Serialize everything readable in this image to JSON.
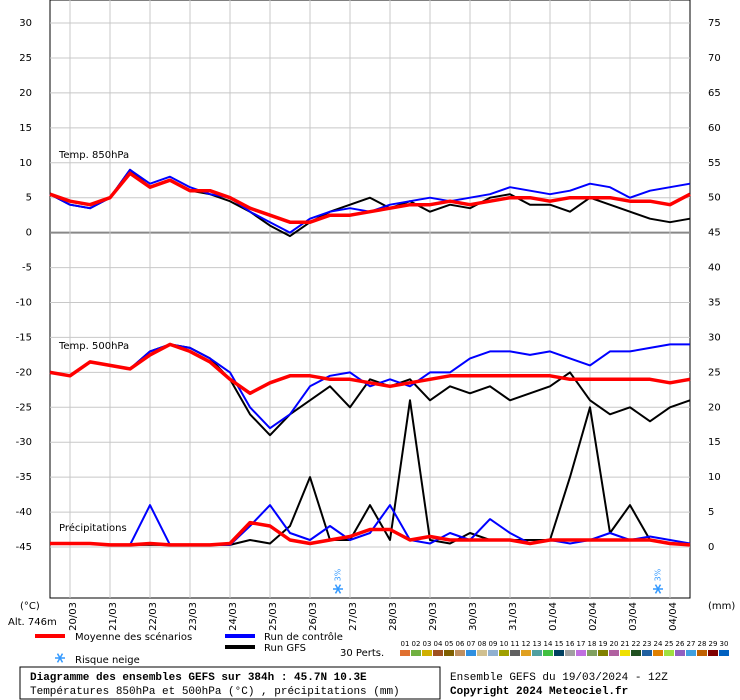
{
  "chart_data": {
    "type": "line",
    "annotations": [
      "Temp. 850hPa",
      "Temp. 500hPa",
      "Précipitations"
    ],
    "y_unit": "(°C)",
    "y2_unit": "(mm)",
    "altitude": "Alt. 746m",
    "categories": [
      "20/03",
      "21/03",
      "22/03",
      "23/03",
      "24/03",
      "25/03",
      "26/03",
      "27/03",
      "28/03",
      "29/03",
      "30/03",
      "31/03",
      "01/04",
      "02/04",
      "03/04",
      "04/04"
    ],
    "ylim": [
      -52.3,
      33.3
    ],
    "yticks": [
      -45,
      -40,
      -35,
      -30,
      -25,
      -20,
      -15,
      -10,
      -5,
      0,
      5,
      10,
      15,
      20,
      25,
      30
    ],
    "y2lim": [
      -7.3,
      78.3
    ],
    "y2ticks": [
      0,
      5,
      10,
      15,
      20,
      25,
      30,
      35,
      40,
      45,
      50,
      55,
      60,
      65,
      70,
      75
    ],
    "grid": true,
    "series": [
      {
        "name": "Moyenne des scénarios",
        "color": "#ff0000",
        "t850": [
          5.5,
          4.5,
          4,
          5,
          8.5,
          6.5,
          7.5,
          6,
          6,
          5,
          3.5,
          2.5,
          1.5,
          1.5,
          2.5,
          2.5,
          3,
          3.5,
          4,
          4,
          4.5,
          4,
          4.5,
          5,
          5,
          4.5,
          5,
          5,
          5,
          4.5,
          4.5,
          4,
          5.5
        ],
        "t500": [
          -20,
          -20.5,
          -18.5,
          -19,
          -19.5,
          -17.5,
          -16,
          -17,
          -18.5,
          -21,
          -23,
          -21.5,
          -20.5,
          -20.5,
          -21,
          -21,
          -21.5,
          -22,
          -21.5,
          -21,
          -20.5,
          -20.5,
          -20.5,
          -20.5,
          -20.5,
          -20.5,
          -21,
          -21,
          -21,
          -21,
          -21,
          -21.5,
          -21
        ],
        "precip": [
          0.5,
          0.5,
          0.5,
          0.3,
          0.3,
          0.5,
          0.3,
          0.3,
          0.3,
          0.5,
          3.5,
          3,
          1,
          0.5,
          1,
          1.5,
          2.5,
          2.5,
          1,
          1.5,
          1,
          1,
          1,
          1,
          0.5,
          1,
          1,
          1,
          1,
          1,
          1,
          0.5,
          0.3
        ]
      },
      {
        "name": "Run de contrôle",
        "color": "#0000ff",
        "t850": [
          5.5,
          4,
          3.5,
          5,
          9,
          7,
          8,
          6.5,
          5.5,
          5,
          3,
          1.5,
          0,
          2,
          3,
          3.5,
          3,
          4,
          4.5,
          5,
          4.5,
          5,
          5.5,
          6.5,
          6,
          5.5,
          6,
          7,
          6.5,
          5,
          6,
          6.5,
          7
        ],
        "t500": [
          -20,
          -20.5,
          -18.5,
          -19,
          -19.5,
          -17,
          -16,
          -16.5,
          -18,
          -20,
          -25,
          -28,
          -26,
          -22,
          -20.5,
          -20,
          -22,
          -21,
          -22,
          -20,
          -20,
          -18,
          -17,
          -17,
          -17.5,
          -17,
          -18,
          -19,
          -17,
          -17,
          -16.5,
          -16,
          -16
        ],
        "precip": [
          0.5,
          0.5,
          0.5,
          0.3,
          0.3,
          6,
          0.3,
          0.3,
          0.3,
          0.3,
          3,
          6,
          2,
          1,
          3,
          1,
          2,
          6,
          1,
          0.5,
          2,
          1,
          4,
          2,
          0.5,
          1,
          0.5,
          1,
          2,
          1,
          1.5,
          1,
          0.5
        ]
      },
      {
        "name": "Run GFS",
        "color": "#000000",
        "t850": [
          5.5,
          4,
          3.5,
          5,
          9,
          6.5,
          7.5,
          6,
          5.5,
          4.5,
          3,
          1,
          -0.5,
          1.5,
          3,
          4,
          5,
          3.5,
          4.5,
          3,
          4,
          3.5,
          5,
          5.5,
          4,
          4,
          3,
          5,
          4,
          3,
          2,
          1.5,
          2
        ],
        "t500": [
          -20,
          -20.5,
          -18.5,
          -19,
          -19.5,
          -17,
          -16,
          -16.5,
          -18,
          -21,
          -26,
          -29,
          -26,
          -24,
          -22,
          -25,
          -21,
          -22,
          -21,
          -24,
          -22,
          -23,
          -22,
          -24,
          -23,
          -22,
          -20,
          -24,
          -26,
          -25,
          -27,
          -25,
          -24
        ],
        "precip": [
          0.5,
          0.5,
          0.5,
          0.3,
          0.3,
          0.3,
          0.3,
          0.3,
          0.3,
          0.3,
          1,
          0.5,
          3,
          10,
          1,
          1,
          6,
          1,
          21,
          1,
          0.5,
          2,
          1,
          1,
          1,
          1,
          10,
          20,
          2,
          6,
          1,
          0.5,
          0.3
        ]
      }
    ],
    "snow_legend": "Risque neige",
    "snow_risk": [
      {
        "day": "27/03",
        "value": 3,
        "value_label": "3%"
      },
      {
        "day": "04/04",
        "value": 3,
        "value_label": "3%"
      }
    ],
    "perturbations": {
      "label": "30 Perts.",
      "members": [
        {
          "name": "01",
          "color": "#e07030"
        },
        {
          "name": "02",
          "color": "#70b040"
        },
        {
          "name": "03",
          "color": "#d0b000"
        },
        {
          "name": "04",
          "color": "#a05020"
        },
        {
          "name": "05",
          "color": "#806000"
        },
        {
          "name": "06",
          "color": "#c09060"
        },
        {
          "name": "07",
          "color": "#3090e0"
        },
        {
          "name": "08",
          "color": "#d0c090"
        },
        {
          "name": "09",
          "color": "#90b0d0"
        },
        {
          "name": "10",
          "color": "#a0a000"
        },
        {
          "name": "11",
          "color": "#606060"
        },
        {
          "name": "12",
          "color": "#e0a020"
        },
        {
          "name": "13",
          "color": "#50a0a0"
        },
        {
          "name": "14",
          "color": "#40c040"
        },
        {
          "name": "15",
          "color": "#004060"
        },
        {
          "name": "16",
          "color": "#a0a0a0"
        },
        {
          "name": "17",
          "color": "#c070e0"
        },
        {
          "name": "18",
          "color": "#80a060"
        },
        {
          "name": "19",
          "color": "#808000"
        },
        {
          "name": "20",
          "color": "#b060a0"
        },
        {
          "name": "21",
          "color": "#f0e000"
        },
        {
          "name": "22",
          "color": "#205020"
        },
        {
          "name": "23",
          "color": "#2060a0"
        },
        {
          "name": "24",
          "color": "#e08000"
        },
        {
          "name": "25",
          "color": "#a0e040"
        },
        {
          "name": "26",
          "color": "#9060c0"
        },
        {
          "name": "27",
          "color": "#40a0e0"
        },
        {
          "name": "28",
          "color": "#c06000"
        },
        {
          "name": "29",
          "color": "#800000"
        },
        {
          "name": "30",
          "color": "#0060c0"
        }
      ]
    },
    "footer": {
      "title": "Diagramme des ensembles GEFS sur 384h : 45.7N 10.3E",
      "subtitle": "Températures 850hPa et 500hPa (°C) , précipitations (mm)",
      "run": "Ensemble GEFS du 19/03/2024 - 12Z",
      "copyright": "Copyright 2024 Meteociel.fr"
    }
  }
}
